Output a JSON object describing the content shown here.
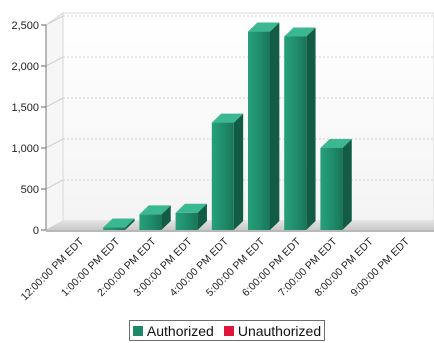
{
  "chart_data": {
    "type": "bar",
    "title": "",
    "xlabel": "",
    "ylabel": "",
    "categories": [
      "12:00:00 PM EDT",
      "1:00:00 PM EDT",
      "2:00:00 PM EDT",
      "3:00:00 PM EDT",
      "4:00:00 PM EDT",
      "5:00:00 PM EDT",
      "6:00:00 PM EDT",
      "7:00:00 PM EDT",
      "8:00:00 PM EDT",
      "9:00:00 PM EDT"
    ],
    "series": [
      {
        "name": "Authorized",
        "values": [
          0,
          30,
          190,
          210,
          1310,
          2420,
          2360,
          1000,
          0,
          0
        ],
        "color": "#1c8a6a"
      },
      {
        "name": "Unauthorized",
        "values": [
          0,
          0,
          0,
          0,
          0,
          0,
          0,
          0,
          0,
          0
        ],
        "color": "#e0153a"
      }
    ],
    "ylim": [
      0,
      2500
    ],
    "yticks": [
      "0",
      "500",
      "1,000",
      "1,500",
      "2,000",
      "2,500"
    ],
    "ytick_values": [
      0,
      500,
      1000,
      1500,
      2000,
      2500
    ],
    "grid": true,
    "legend_position": "bottom-center",
    "style": "3d"
  },
  "legend": {
    "items": [
      {
        "label": "Authorized",
        "color": "#1c8a6a"
      },
      {
        "label": "Unauthorized",
        "color": "#e0153a"
      }
    ]
  }
}
